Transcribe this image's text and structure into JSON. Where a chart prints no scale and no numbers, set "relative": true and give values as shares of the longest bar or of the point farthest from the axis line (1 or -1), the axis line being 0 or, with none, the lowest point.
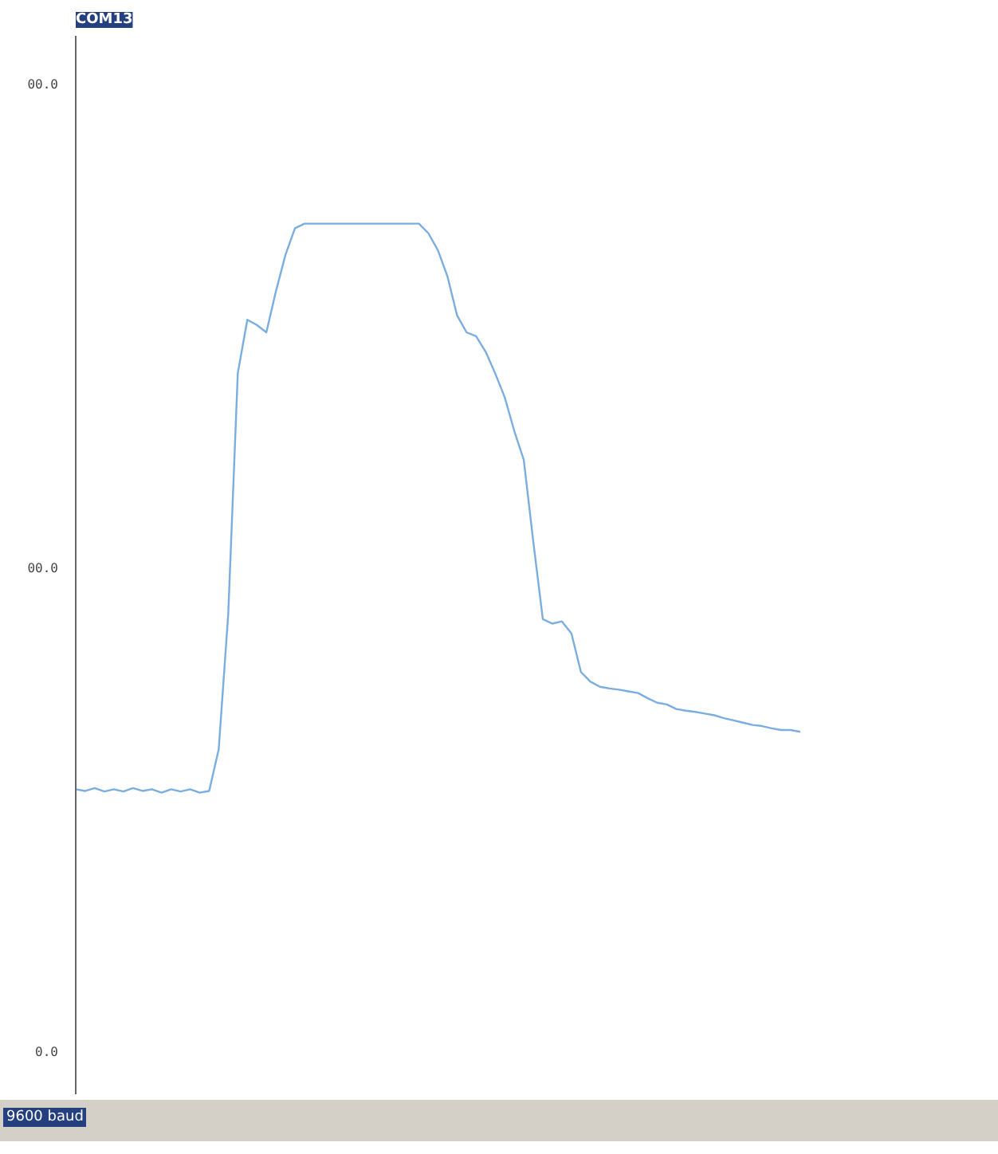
{
  "chart_data": {
    "type": "line",
    "title": "COM13",
    "relative": true,
    "categories": [
      null,
      null,
      null,
      null,
      null,
      null,
      null,
      null,
      null,
      null,
      null,
      null,
      null,
      null,
      null,
      null,
      null,
      null,
      null,
      null,
      null,
      null,
      null,
      null,
      null,
      null,
      null,
      null,
      null,
      null,
      null,
      null,
      null,
      null,
      null,
      null,
      null,
      null,
      null,
      null,
      null,
      null,
      null,
      null,
      null,
      null,
      null,
      null,
      null,
      null,
      null,
      null,
      null,
      null,
      null,
      null,
      null,
      null,
      null,
      null,
      null,
      null,
      null,
      null,
      null,
      null,
      null,
      null,
      null,
      null,
      null,
      null,
      null,
      null,
      null,
      null,
      null,
      null,
      null,
      null,
      null,
      null,
      null,
      null,
      null,
      null,
      null,
      null,
      null,
      null,
      null,
      null,
      null,
      null,
      null,
      null,
      null
    ],
    "series": [
      {
        "color": "#7aaee0",
        "values": [
          0.006,
          0.003,
          0.008,
          0.002,
          0.006,
          0.002,
          0.008,
          0.003,
          0.006,
          0,
          0.006,
          0.002,
          0.006,
          0,
          0.003,
          0.076,
          0.314,
          0.737,
          0.831,
          0.822,
          0.809,
          0.881,
          0.945,
          0.992,
          1,
          1,
          1,
          1,
          1,
          1,
          1,
          1,
          1,
          1,
          1,
          1,
          1,
          0.983,
          0.953,
          0.907,
          0.839,
          0.809,
          0.802,
          0.775,
          0.737,
          0.695,
          0.636,
          0.585,
          0.441,
          0.305,
          0.297,
          0.301,
          0.28,
          0.212,
          0.195,
          0.186,
          0.183,
          0.181,
          0.178,
          0.175,
          0.166,
          0.158,
          0.155,
          0.147,
          0.144,
          0.142,
          0.139,
          0.136,
          0.131,
          0.127,
          0.123,
          0.119,
          0.117,
          0.113,
          0.11,
          0.11,
          0.107,
          null,
          null,
          null,
          null,
          null,
          null,
          null,
          null,
          null,
          null,
          null,
          null,
          null,
          null,
          null,
          null,
          null,
          null,
          null,
          null
        ]
      }
    ],
    "tick_labels": false,
    "grid": false,
    "marker": "none",
    "line_style": "solid",
    "annotations": [
      "00.0",
      "00.0",
      "0.0",
      "9600 baud"
    ]
  }
}
